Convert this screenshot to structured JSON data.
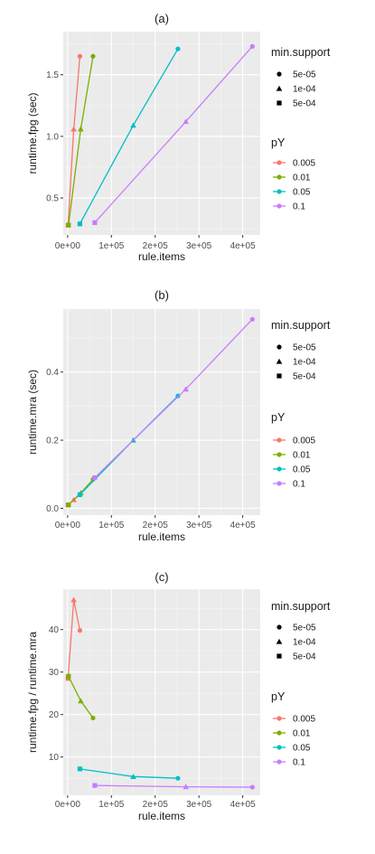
{
  "legend": {
    "shape_title": "min.support",
    "shape_entries": [
      {
        "label": "5e-05",
        "shape": "circle"
      },
      {
        "label": "1e-04",
        "shape": "triangle"
      },
      {
        "label": "5e-04",
        "shape": "square"
      }
    ],
    "color_title": "pY",
    "color_entries": [
      {
        "label": "0.005",
        "color": "#F8766D"
      },
      {
        "label": "0.01",
        "color": "#7CAE00"
      },
      {
        "label": "0.05",
        "color": "#00BFC4"
      },
      {
        "label": "0.1",
        "color": "#C77CFF"
      }
    ]
  },
  "chart_data": [
    {
      "type": "line",
      "title": "(a)",
      "xlabel": "rule.items",
      "ylabel": "runtime.fpg (sec)",
      "xlim": [
        -10000,
        440000
      ],
      "ylim": [
        0.2,
        1.85
      ],
      "xticks": [
        0,
        100000,
        200000,
        300000,
        400000
      ],
      "xtick_labels": [
        "0e+00",
        "1e+05",
        "2e+05",
        "3e+05",
        "4e+05"
      ],
      "yticks": [
        0.5,
        1.0,
        1.5
      ],
      "ytick_labels": [
        "0.5",
        "1.0",
        "1.5"
      ],
      "series": [
        {
          "name": "0.005",
          "color": "#F8766D",
          "points": [
            {
              "x": 1000,
              "y": 0.28,
              "shape": "square"
            },
            {
              "x": 14000,
              "y": 1.06,
              "shape": "triangle"
            },
            {
              "x": 28000,
              "y": 1.65,
              "shape": "circle"
            }
          ]
        },
        {
          "name": "0.01",
          "color": "#7CAE00",
          "points": [
            {
              "x": 2000,
              "y": 0.28,
              "shape": "square"
            },
            {
              "x": 30000,
              "y": 1.06,
              "shape": "triangle"
            },
            {
              "x": 58000,
              "y": 1.65,
              "shape": "circle"
            }
          ]
        },
        {
          "name": "0.05",
          "color": "#00BFC4",
          "points": [
            {
              "x": 28000,
              "y": 0.29,
              "shape": "square"
            },
            {
              "x": 150000,
              "y": 1.09,
              "shape": "triangle"
            },
            {
              "x": 252000,
              "y": 1.71,
              "shape": "circle"
            }
          ]
        },
        {
          "name": "0.1",
          "color": "#C77CFF",
          "points": [
            {
              "x": 62000,
              "y": 0.3,
              "shape": "square"
            },
            {
              "x": 270000,
              "y": 1.12,
              "shape": "triangle"
            },
            {
              "x": 422000,
              "y": 1.73,
              "shape": "circle"
            }
          ]
        }
      ]
    },
    {
      "type": "line",
      "title": "(b)",
      "xlabel": "rule.items",
      "ylabel": "runtime.mra (sec)",
      "xlim": [
        -10000,
        440000
      ],
      "ylim": [
        -0.02,
        0.585
      ],
      "xticks": [
        0,
        100000,
        200000,
        300000,
        400000
      ],
      "xtick_labels": [
        "0e+00",
        "1e+05",
        "2e+05",
        "3e+05",
        "4e+05"
      ],
      "yticks": [
        0.0,
        0.2,
        0.4
      ],
      "ytick_labels": [
        "0.0",
        "0.2",
        "0.4"
      ],
      "series": [
        {
          "name": "0.005",
          "color": "#F8766D",
          "points": [
            {
              "x": 1000,
              "y": 0.01,
              "shape": "square"
            },
            {
              "x": 14000,
              "y": 0.025,
              "shape": "triangle"
            },
            {
              "x": 28000,
              "y": 0.04,
              "shape": "circle"
            }
          ]
        },
        {
          "name": "0.01",
          "color": "#7CAE00",
          "points": [
            {
              "x": 2000,
              "y": 0.01,
              "shape": "square"
            },
            {
              "x": 30000,
              "y": 0.045,
              "shape": "triangle"
            },
            {
              "x": 58000,
              "y": 0.085,
              "shape": "circle"
            }
          ]
        },
        {
          "name": "0.05",
          "color": "#00BFC4",
          "points": [
            {
              "x": 28000,
              "y": 0.04,
              "shape": "square"
            },
            {
              "x": 150000,
              "y": 0.2,
              "shape": "triangle"
            },
            {
              "x": 252000,
              "y": 0.33,
              "shape": "circle"
            }
          ]
        },
        {
          "name": "0.1",
          "color": "#C77CFF",
          "points": [
            {
              "x": 62000,
              "y": 0.09,
              "shape": "square"
            },
            {
              "x": 270000,
              "y": 0.35,
              "shape": "triangle"
            },
            {
              "x": 422000,
              "y": 0.555,
              "shape": "circle"
            }
          ]
        }
      ]
    },
    {
      "type": "line",
      "title": "(c)",
      "xlabel": "rule.items",
      "ylabel": "runtime.fpg / runtime.mra",
      "xlim": [
        -10000,
        440000
      ],
      "ylim": [
        1.0,
        49.5
      ],
      "xticks": [
        0,
        100000,
        200000,
        300000,
        400000
      ],
      "xtick_labels": [
        "0e+00",
        "1e+05",
        "2e+05",
        "3e+05",
        "4e+05"
      ],
      "yticks": [
        10,
        20,
        30,
        40
      ],
      "ytick_labels": [
        "10",
        "20",
        "30",
        "40"
      ],
      "series": [
        {
          "name": "0.005",
          "color": "#F8766D",
          "points": [
            {
              "x": 1000,
              "y": 28.5,
              "shape": "square"
            },
            {
              "x": 14000,
              "y": 47.0,
              "shape": "triangle"
            },
            {
              "x": 28000,
              "y": 39.8,
              "shape": "circle"
            }
          ]
        },
        {
          "name": "0.01",
          "color": "#7CAE00",
          "points": [
            {
              "x": 2000,
              "y": 29.0,
              "shape": "square"
            },
            {
              "x": 30000,
              "y": 23.2,
              "shape": "triangle"
            },
            {
              "x": 58000,
              "y": 19.2,
              "shape": "circle"
            }
          ]
        },
        {
          "name": "0.05",
          "color": "#00BFC4",
          "points": [
            {
              "x": 28000,
              "y": 7.2,
              "shape": "square"
            },
            {
              "x": 150000,
              "y": 5.4,
              "shape": "triangle"
            },
            {
              "x": 252000,
              "y": 5.0,
              "shape": "circle"
            }
          ]
        },
        {
          "name": "0.1",
          "color": "#C77CFF",
          "points": [
            {
              "x": 62000,
              "y": 3.3,
              "shape": "square"
            },
            {
              "x": 270000,
              "y": 3.0,
              "shape": "triangle"
            },
            {
              "x": 422000,
              "y": 2.9,
              "shape": "circle"
            }
          ]
        }
      ]
    }
  ]
}
